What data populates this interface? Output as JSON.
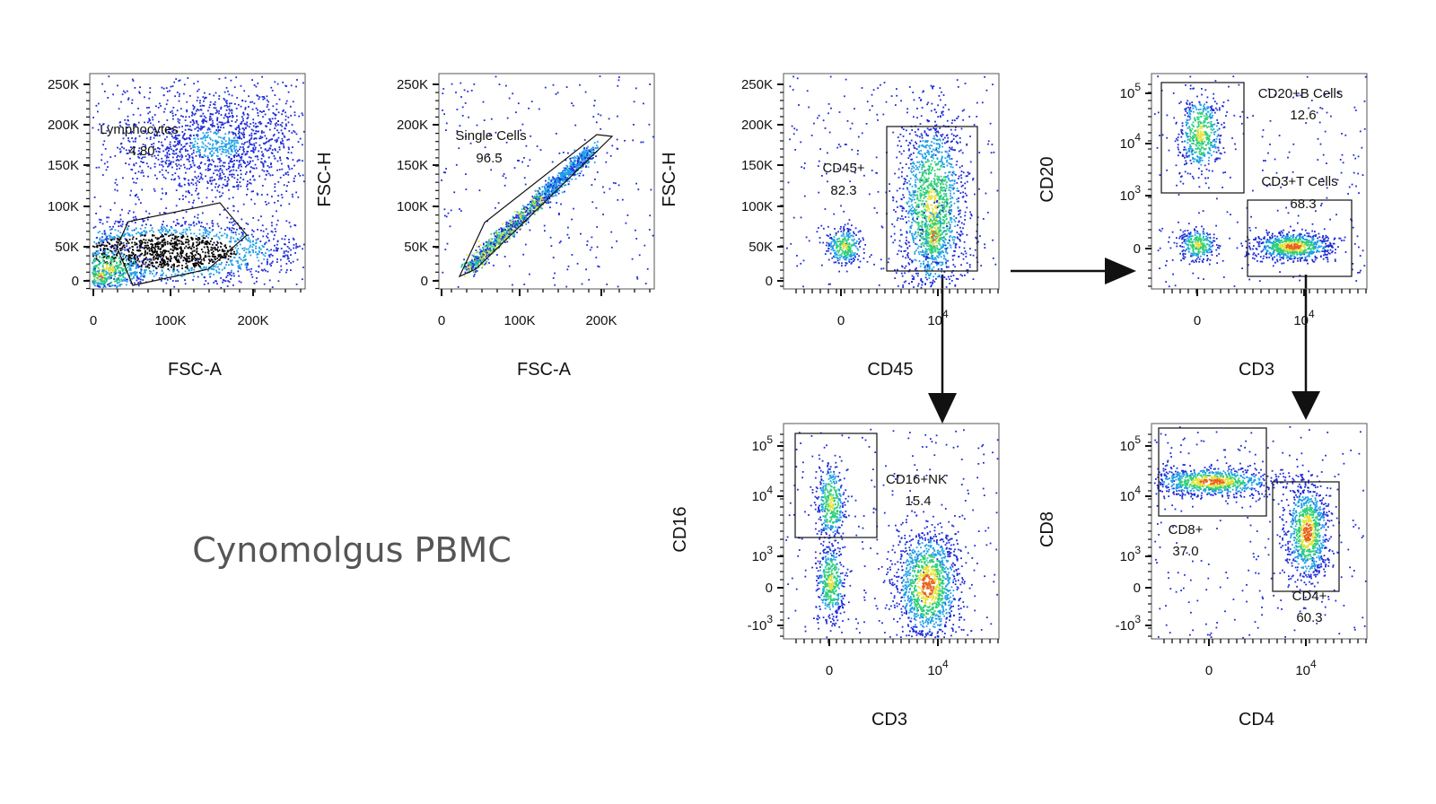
{
  "title": "Cynomolgus PBMC",
  "panels": [
    {
      "x_label": "FSC-A",
      "y_label": null,
      "x_ticks": [
        "0",
        "100K",
        "200K"
      ],
      "y_ticks": [
        "250K",
        "200K",
        "150K",
        "100K",
        "50K",
        "0"
      ],
      "gates": [
        {
          "name": "Lymphocytes",
          "value": "4.80"
        }
      ]
    },
    {
      "x_label": "FSC-A",
      "y_label": "FSC-H",
      "x_ticks": [
        "0",
        "100K",
        "200K"
      ],
      "y_ticks": [
        "250K",
        "200K",
        "150K",
        "100K",
        "50K",
        "0"
      ],
      "gates": [
        {
          "name": "Single Cells",
          "value": "96.5"
        }
      ]
    },
    {
      "x_label": "CD45",
      "y_label": "FSC-H",
      "x_ticks": [
        "0",
        {
          "base": "10",
          "exp": "4"
        }
      ],
      "y_ticks": [
        "250K",
        "200K",
        "150K",
        "100K",
        "50K",
        "0"
      ],
      "gates": [
        {
          "name": "CD45+",
          "value": "82.3"
        }
      ]
    },
    {
      "x_label": "CD3",
      "y_label": "CD20",
      "x_ticks": [
        "0",
        {
          "base": "10",
          "exp": "4"
        }
      ],
      "y_ticks": [
        {
          "base": "10",
          "exp": "5"
        },
        {
          "base": "10",
          "exp": "4"
        },
        {
          "base": "10",
          "exp": "3"
        },
        "0"
      ],
      "gates": [
        {
          "name": "CD20+B Cells",
          "value": "12.6"
        },
        {
          "name": "CD3+T Cells",
          "value": "68.3"
        }
      ]
    },
    {
      "x_label": "CD3",
      "y_label": "CD16",
      "x_ticks": [
        "0",
        {
          "base": "10",
          "exp": "4"
        }
      ],
      "y_ticks": [
        {
          "base": "10",
          "exp": "5"
        },
        {
          "base": "10",
          "exp": "4"
        },
        {
          "base": "10",
          "exp": "3"
        },
        "0",
        {
          "base": "-10",
          "exp": "3"
        }
      ],
      "gates": [
        {
          "name": "CD16+NK",
          "value": "15.4"
        }
      ]
    },
    {
      "x_label": "CD4",
      "y_label": "CD8",
      "x_ticks": [
        "0",
        {
          "base": "10",
          "exp": "4"
        }
      ],
      "y_ticks": [
        {
          "base": "10",
          "exp": "5"
        },
        {
          "base": "10",
          "exp": "4"
        },
        {
          "base": "10",
          "exp": "3"
        },
        "0",
        {
          "base": "-10",
          "exp": "3"
        }
      ],
      "gates": [
        {
          "name": "CD8+",
          "value": "37.0"
        },
        {
          "name": "CD4+",
          "value": "60.3"
        }
      ]
    }
  ]
}
